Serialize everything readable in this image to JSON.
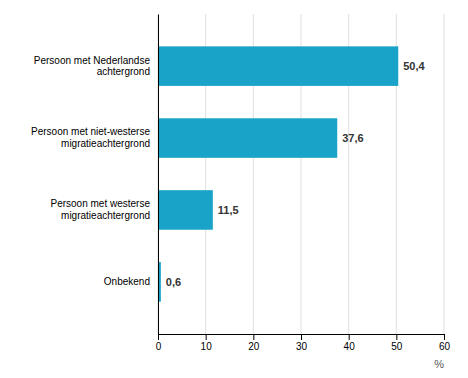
{
  "chart_data": {
    "type": "bar",
    "orientation": "horizontal",
    "categories": [
      "Onbekend",
      "Persoon met westerse\nmigratieachtergrond",
      "Persoon met niet-westerse\nmigratieachtergrond",
      "Persoon met Nederlandse\nachtergrond"
    ],
    "values": [
      0.6,
      11.5,
      37.6,
      50.4
    ],
    "value_labels": [
      "0,6",
      "11,5",
      "37,6",
      "50,4"
    ],
    "data_labels": true,
    "color": "#1aa3c8",
    "xlabel": "%",
    "xlim": [
      0,
      60
    ],
    "xticks": [
      0,
      10,
      20,
      30,
      40,
      50,
      60
    ],
    "grid": true
  }
}
